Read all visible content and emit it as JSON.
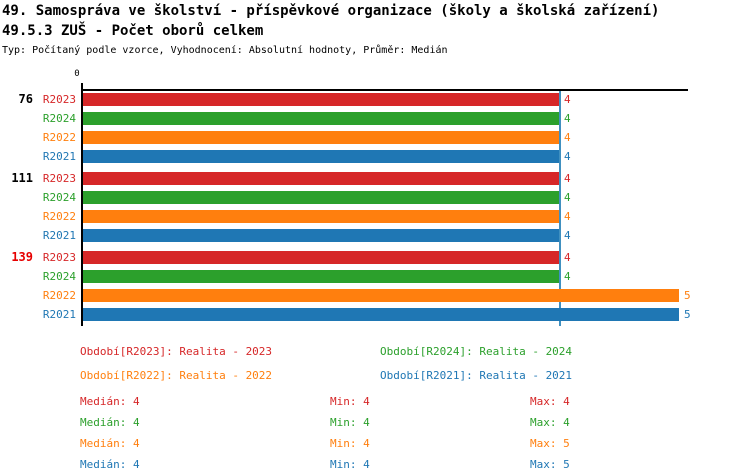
{
  "header": {
    "title_line1": "49. Samospráva ve školství - příspěvkové organizace (školy a školská zařízení)",
    "title_line2": "49.5.3 ZUŠ - Počet oborů celkem",
    "subtitle": "Typ: Počítaný podle vzorce, Vyhodnocení: Absolutní hodnoty, Průměr: Medián"
  },
  "chart_data": {
    "type": "bar",
    "orientation": "horizontal",
    "title": "49.5.3 ZUŠ - Počet oborů celkem",
    "x_axis": {
      "origin_tick_label": "0",
      "min": 0,
      "max": 5.05,
      "grid": false,
      "axis_position": "top"
    },
    "categories": [
      "76",
      "111",
      "139"
    ],
    "category_label_colors": [
      "#000000",
      "#000000",
      "#e60000"
    ],
    "series": [
      {
        "name": "R2023",
        "color": "#d62728",
        "values": [
          4,
          4,
          4
        ]
      },
      {
        "name": "R2024",
        "color": "#2ca02c",
        "values": [
          4,
          4,
          4
        ]
      },
      {
        "name": "R2022",
        "color": "#ff7f0e",
        "values": [
          4,
          4,
          5
        ]
      },
      {
        "name": "R2021",
        "color": "#1f77b4",
        "values": [
          4,
          4,
          5
        ]
      }
    ],
    "bar_value_labels": true,
    "median_line": {
      "value": 4,
      "color": "#4090c0"
    }
  },
  "legend": {
    "items": [
      {
        "label": "Období[R2023]: Realita - 2023",
        "color": "#d62728"
      },
      {
        "label": "Období[R2024]: Realita - 2024",
        "color": "#2ca02c"
      },
      {
        "label": "Období[R2022]: Realita - 2022",
        "color": "#ff7f0e"
      },
      {
        "label": "Období[R2021]: Realita - 2021",
        "color": "#1f77b4"
      }
    ]
  },
  "stats": {
    "rows": [
      {
        "median": "Medián: 4",
        "min": "Min: 4",
        "max": "Max: 4",
        "color": "#d62728"
      },
      {
        "median": "Medián: 4",
        "min": "Min: 4",
        "max": "Max: 4",
        "color": "#2ca02c"
      },
      {
        "median": "Medián: 4",
        "min": "Min: 4",
        "max": "Max: 5",
        "color": "#ff7f0e"
      },
      {
        "median": "Medián: 4",
        "min": "Min: 4",
        "max": "Max: 5",
        "color": "#1f77b4"
      }
    ]
  }
}
